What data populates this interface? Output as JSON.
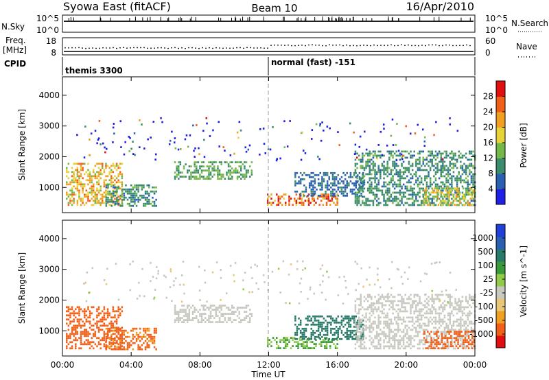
{
  "header": {
    "station": "Syowa East (fitACF)",
    "beam": "Beam 10",
    "date": "16/Apr/2010"
  },
  "strips": {
    "nsky": {
      "label": "N.Sky",
      "right_label": "N.Search",
      "left_ticks": [
        "10^5",
        "10^0"
      ],
      "right_ticks": [
        "10^5",
        "10^0"
      ]
    },
    "freq": {
      "label_top": "Freq.",
      "label_bottom": "[MHz]",
      "right_label": "Nave",
      "left_ticks": [
        "18",
        "8"
      ],
      "right_ticks": [
        "60",
        "0"
      ]
    },
    "cpid": {
      "label": "CPID",
      "segments": [
        {
          "name": "themis 3300",
          "start_hour": 0,
          "end_hour": 12
        },
        {
          "name": "normal (fast) -151",
          "start_hour": 12,
          "end_hour": 24
        }
      ]
    }
  },
  "colors": {
    "power_scale": [
      "#1f1fe6",
      "#2a5fb2",
      "#3a8c6a",
      "#74b84a",
      "#e8d23a",
      "#f0a020",
      "#f06018",
      "#e01010"
    ],
    "velocity_scale": [
      "#e01010",
      "#f06018",
      "#f0a020",
      "#e8c878",
      "#c8c8c0",
      "#90cc4a",
      "#3a9a3a",
      "#2a7a6a",
      "#2a5fb2",
      "#1f3fd6"
    ]
  },
  "chart_data": [
    {
      "type": "heatmap",
      "title": "",
      "xlabel": "Time UT",
      "ylabel": "Slant Range [km]",
      "xlim": [
        0,
        24
      ],
      "ylim": [
        180,
        4600
      ],
      "x_ticks": [
        "00:00",
        "04:00",
        "08:00",
        "12:00",
        "16:00",
        "20:00",
        "00:00"
      ],
      "y_ticks": [
        "1000",
        "2000",
        "3000",
        "4000"
      ],
      "colorbar": {
        "label": "Power [dB]",
        "range": [
          0,
          32
        ],
        "ticks": [
          "4",
          "8",
          "12",
          "16",
          "20",
          "24",
          "28"
        ]
      },
      "regions": [
        {
          "start": 0.2,
          "end": 3.5,
          "range": [
            400,
            1800
          ],
          "value": 20
        },
        {
          "start": 2.5,
          "end": 5.5,
          "range": [
            400,
            1100
          ],
          "value": 10
        },
        {
          "start": 6.5,
          "end": 11.0,
          "range": [
            1250,
            1850
          ],
          "value": 12
        },
        {
          "start": 11.9,
          "end": 16.0,
          "range": [
            400,
            800
          ],
          "value": 24
        },
        {
          "start": 13.5,
          "end": 17.5,
          "range": [
            700,
            1500
          ],
          "value": 7
        },
        {
          "start": 17.0,
          "end": 24.0,
          "range": [
            400,
            2200
          ],
          "value": 10
        },
        {
          "start": 21.0,
          "end": 24.0,
          "range": [
            400,
            1000
          ],
          "value": 18
        }
      ]
    },
    {
      "type": "heatmap",
      "title": "",
      "xlabel": "Time UT",
      "ylabel": "Slant Range [km]",
      "xlim": [
        0,
        24
      ],
      "ylim": [
        180,
        4600
      ],
      "x_ticks": [
        "00:00",
        "04:00",
        "08:00",
        "12:00",
        "16:00",
        "20:00",
        "00:00"
      ],
      "y_ticks": [
        "1000",
        "2000",
        "3000",
        "4000"
      ],
      "colorbar": {
        "label": "Velocity [m s^-1]",
        "ticks": [
          "1000",
          "500",
          "100",
          "25",
          "-25",
          "-100",
          "-500",
          "-1000"
        ]
      },
      "regions": [
        {
          "start": 0.2,
          "end": 3.5,
          "range": [
            400,
            1800
          ],
          "value": -150
        },
        {
          "start": 2.5,
          "end": 5.5,
          "range": [
            400,
            1100
          ],
          "value": -120
        },
        {
          "start": 6.5,
          "end": 11.0,
          "range": [
            1250,
            1850
          ],
          "value": 0
        },
        {
          "start": 11.9,
          "end": 16.0,
          "range": [
            400,
            800
          ],
          "value": 60
        },
        {
          "start": 13.5,
          "end": 17.5,
          "range": [
            700,
            1500
          ],
          "value": 200
        },
        {
          "start": 17.0,
          "end": 24.0,
          "range": [
            400,
            2200
          ],
          "value": 0
        },
        {
          "start": 21.0,
          "end": 24.0,
          "range": [
            400,
            1000
          ],
          "value": -200
        }
      ]
    }
  ]
}
